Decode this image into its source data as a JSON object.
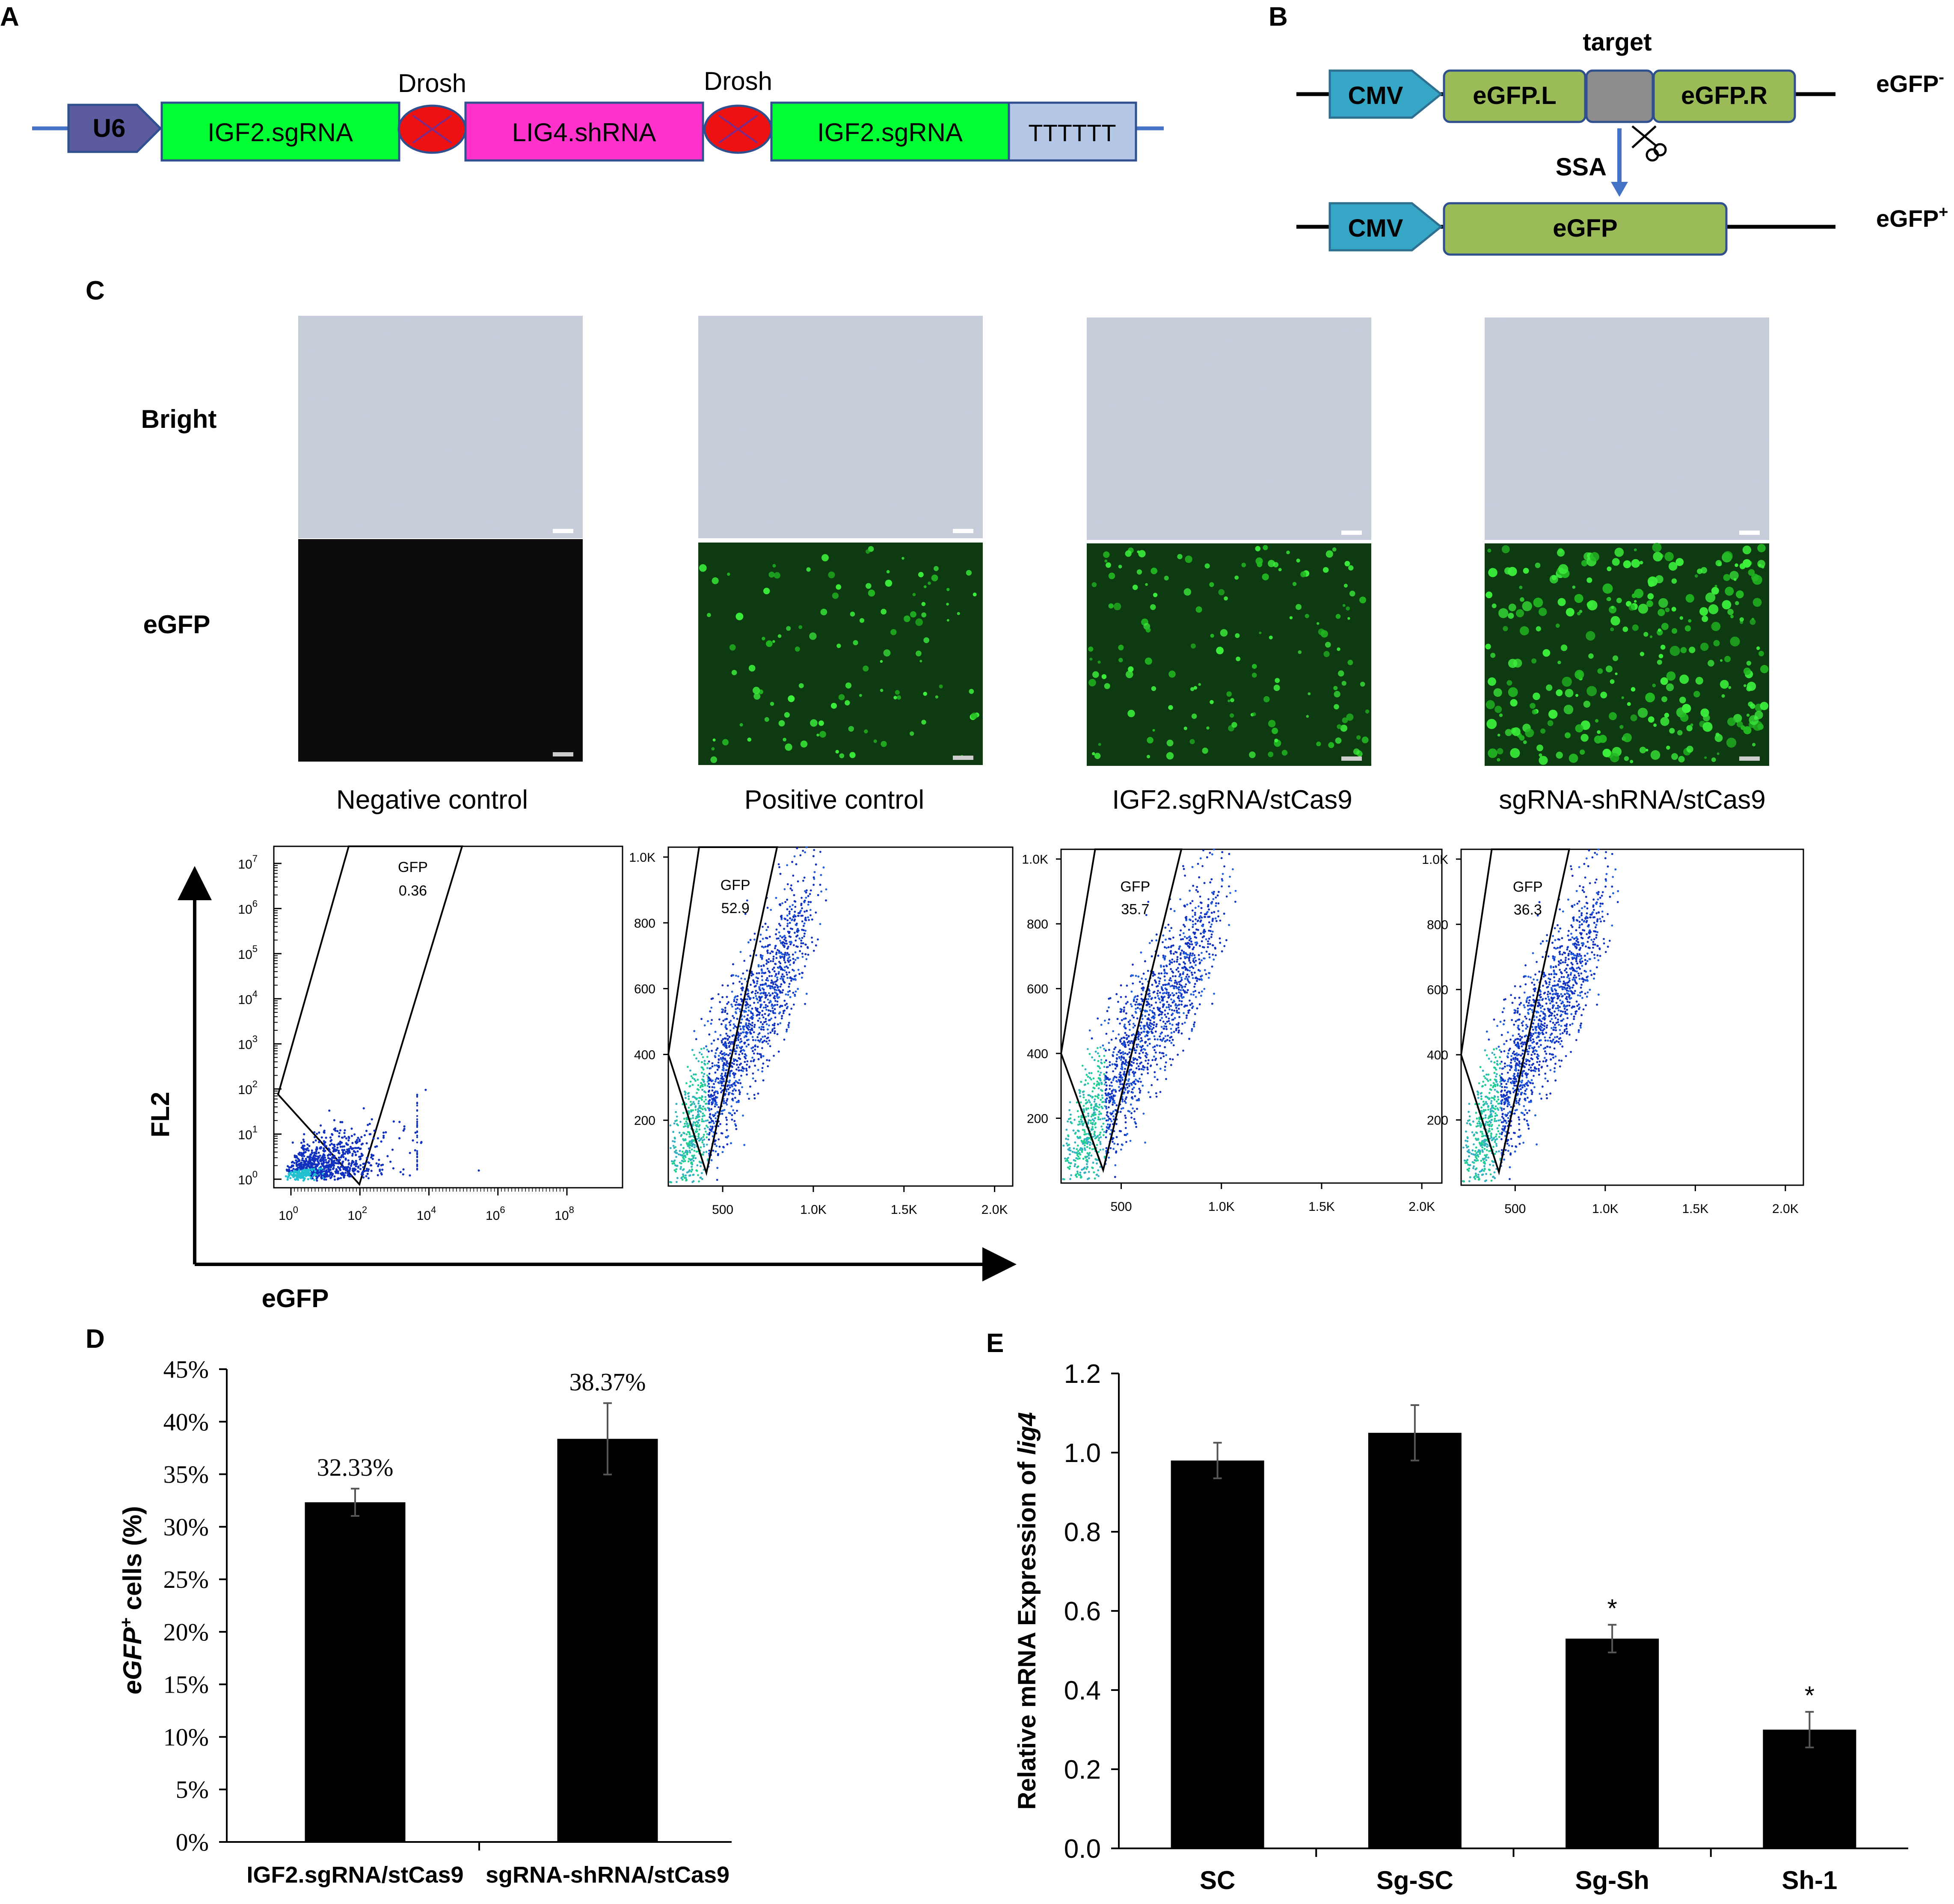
{
  "panel_a": {
    "letter": "A",
    "u6": "U6",
    "sg1": "IGF2.sgRNA",
    "drosh1": "Drosh",
    "shrna": "LIG4.shRNA",
    "drosh2": "Drosh",
    "sg2": "IGF2.sgRNA",
    "term": "TTTTTT"
  },
  "panel_b": {
    "letter": "B",
    "target": "target",
    "cmv_top": "CMV",
    "egfp_l": "eGFP.L",
    "egfp_r": "eGFP.R",
    "ssa": "SSA",
    "cmv_bottom": "CMV",
    "egfp": "eGFP",
    "neg_base": "eGFP",
    "neg_sup": "-",
    "pos_base": "eGFP",
    "pos_sup": "+"
  },
  "panel_c": {
    "letter": "C",
    "row_bright": "Bright",
    "row_egfp": "eGFP",
    "conditions": [
      "Negative control",
      "Positive control",
      "IGF2.sgRNA/stCas9",
      "sgRNA-shRNA/stCas9"
    ],
    "flow_y_label": "FL2",
    "flow_x_label": "eGFP",
    "flow_gate_label": "GFP",
    "flow_gate_values": [
      "0.36",
      "52.9",
      "35.7",
      "36.3"
    ],
    "log_exponents_y": [
      "0",
      "1",
      "2",
      "3",
      "4",
      "5",
      "6",
      "7"
    ],
    "log_exponents_x": [
      "0",
      "2",
      "4",
      "6",
      "8"
    ],
    "log_base": "10",
    "lin_y_ticks": [
      "200",
      "400",
      "600",
      "800",
      "1.0K"
    ],
    "lin_x_ticks": [
      "500",
      "1.0K",
      "1.5K",
      "2.0K"
    ],
    "colors": {
      "fluor_green": "#1a8f1a",
      "dense_blue": "#1030c0",
      "dense_core": "#20d0a0"
    }
  },
  "panel_d": {
    "letter": "D",
    "chart_data": {
      "type": "bar",
      "categories": [
        "IGF2.sgRNA/stCas9",
        "sgRNA-shRNA/stCas9"
      ],
      "values": [
        32.33,
        38.37
      ],
      "errors": [
        1.3,
        3.4
      ],
      "data_labels": [
        "32.33%",
        "38.37%"
      ],
      "ylabel_main": "eGFP",
      "ylabel_sup": "+",
      "ylabel_rest": " cells (%)",
      "ylim": [
        0,
        45
      ],
      "yticks": [
        "0%",
        "5%",
        "10%",
        "15%",
        "20%",
        "25%",
        "30%",
        "35%",
        "40%",
        "45%"
      ]
    }
  },
  "panel_e": {
    "letter": "E",
    "chart_data": {
      "type": "bar",
      "categories": [
        "SC",
        "Sg-SC",
        "Sg-Sh",
        "Sh-1"
      ],
      "values": [
        0.98,
        1.05,
        0.53,
        0.3
      ],
      "errors": [
        0.045,
        0.07,
        0.035,
        0.045
      ],
      "significance": [
        "",
        "",
        "*",
        "*"
      ],
      "ylabel_main": "Relative mRNA Expression of ",
      "ylabel_gene": "lig4",
      "ylim": [
        0,
        1.2
      ],
      "yticks": [
        "0.0",
        "0.2",
        "0.4",
        "0.6",
        "0.8",
        "1.0",
        "1.2"
      ]
    }
  }
}
